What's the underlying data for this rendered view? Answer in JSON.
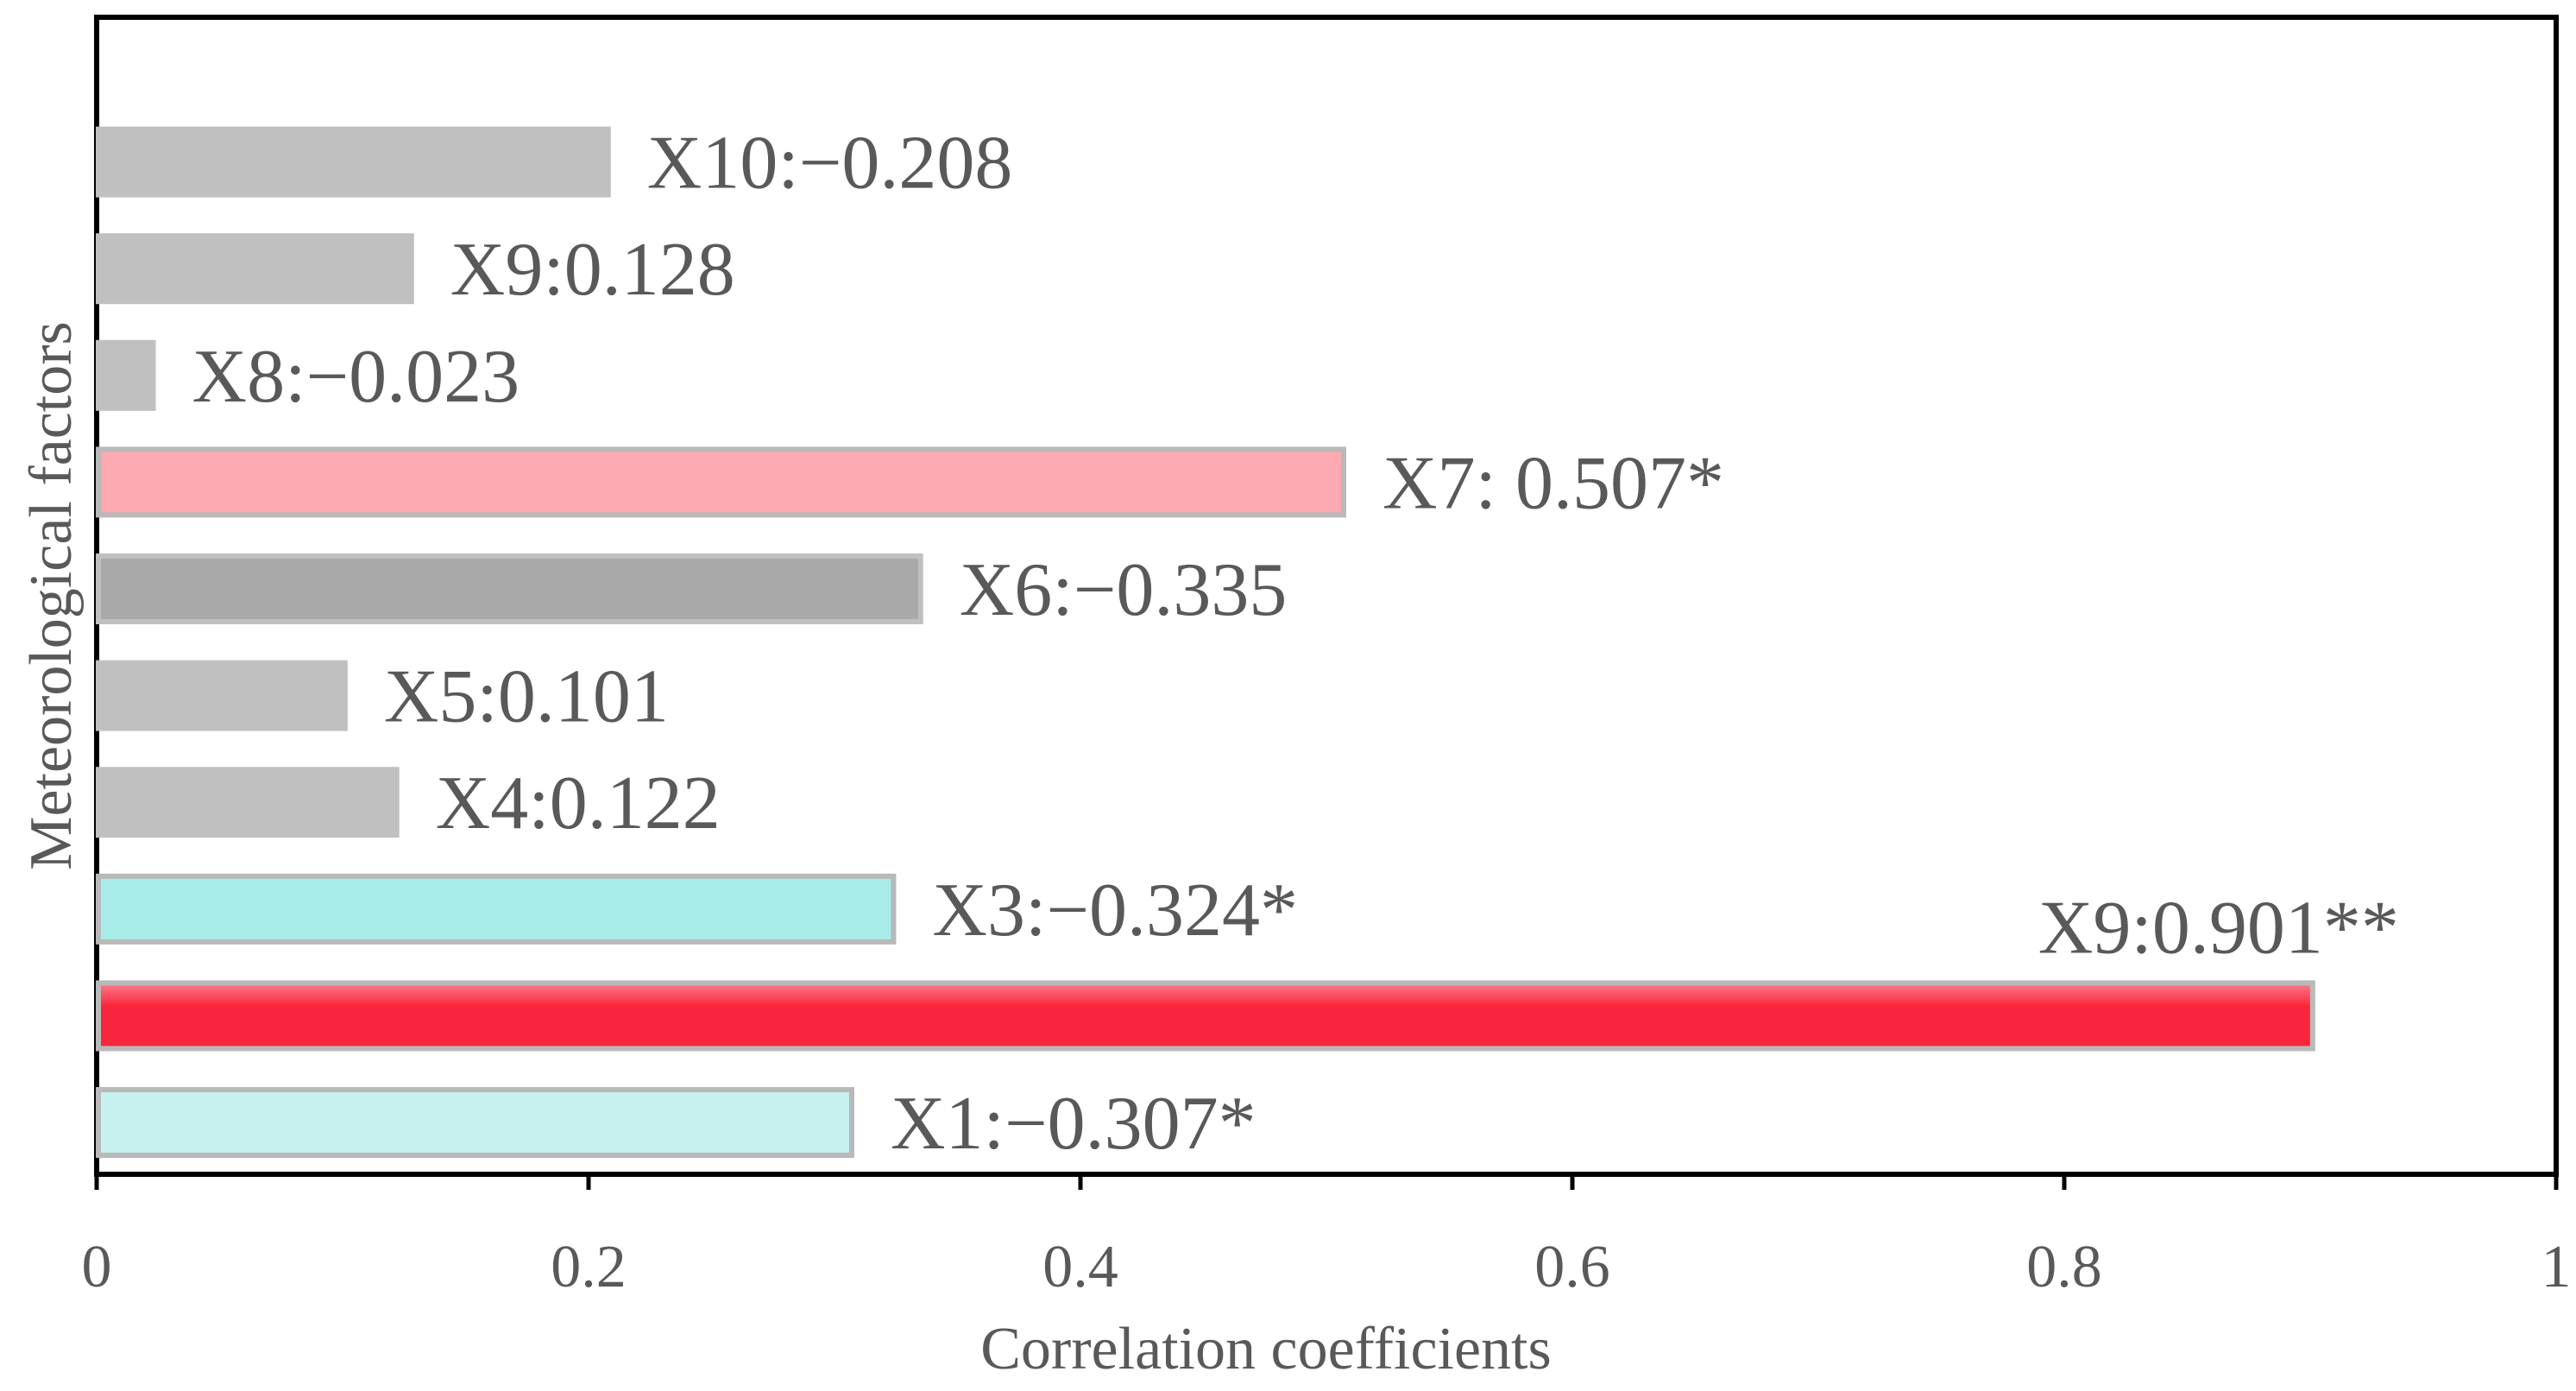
{
  "chart_data": {
    "type": "bar",
    "orientation": "horizontal",
    "xlabel": "Correlation coefficients",
    "ylabel": "Meteorological factors",
    "xlim": [
      0,
      1
    ],
    "xticks": [
      "0",
      "0.2",
      "0.4",
      "0.6",
      "0.8",
      "1"
    ],
    "grid": false,
    "bars": [
      {
        "value": 0.307,
        "label": "X1:−0.307*",
        "color": "#c6f1ee",
        "edge": "#b9b9b9"
      },
      {
        "value": 0.901,
        "label": "X9:0.901**",
        "color": "#f8263c",
        "edge": "#b9b9b9",
        "gradient": [
          "#ff7d8e",
          "#f8263c"
        ]
      },
      {
        "value": 0.324,
        "label": "X3:−0.324*",
        "color": "#a8ede9",
        "edge": "#b9b9b9"
      },
      {
        "value": 0.122,
        "label": "X4:0.122",
        "color": "#c0c0c0",
        "edge": "#c0c0c0"
      },
      {
        "value": 0.101,
        "label": "X5:0.101",
        "color": "#c0c0c0",
        "edge": "#c0c0c0"
      },
      {
        "value": 0.335,
        "label": "X6:−0.335",
        "color": "#a9a9a9",
        "edge": "#c0c0c0"
      },
      {
        "value": 0.507,
        "label": "X7: 0.507*",
        "color": "#fda9b2",
        "edge": "#b9b9b9"
      },
      {
        "value": 0.023,
        "label": "X8:−0.023",
        "color": "#c0c0c0",
        "edge": "#c0c0c0"
      },
      {
        "value": 0.128,
        "label": "X9:0.128",
        "color": "#c0c0c0",
        "edge": "#c0c0c0"
      },
      {
        "value": 0.208,
        "label": "X10:−0.208",
        "color": "#c0c0c0",
        "edge": "#c0c0c0"
      }
    ]
  }
}
